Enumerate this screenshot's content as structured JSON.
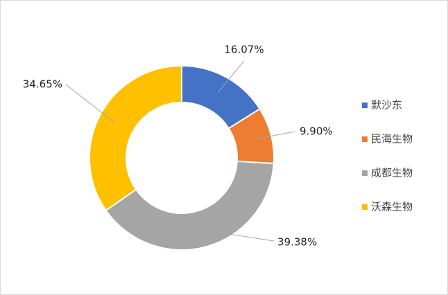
{
  "chart_data": {
    "type": "donut",
    "categories": [
      "默沙东",
      "民海生物",
      "成都生物",
      "沃森生物"
    ],
    "values": [
      16.07,
      9.9,
      39.38,
      34.65
    ],
    "value_labels": [
      "16.07%",
      "9.90%",
      "39.38%",
      "34.65%"
    ],
    "colors": [
      "#4472c4",
      "#ed7d31",
      "#a5a5a5",
      "#ffc000"
    ],
    "legend": "right"
  }
}
